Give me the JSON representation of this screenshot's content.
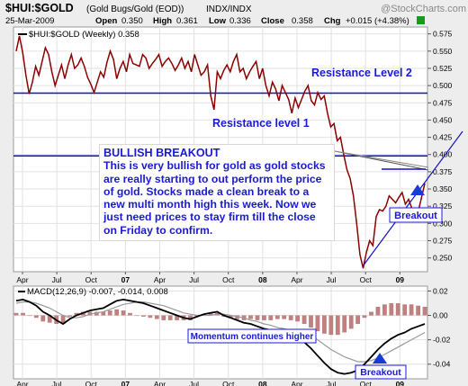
{
  "header": {
    "symbol": "$HUI:$GOLD",
    "description": "(Gold Bugs/Gold (EOD))",
    "exchange": "INDX/INDX",
    "watermark": "@StockCharts.com",
    "date": "25-Mar-2009",
    "open_label": "Open",
    "open": "0.350",
    "high_label": "High",
    "high": "0.361",
    "low_label": "Low",
    "low": "0.336",
    "close_label": "Close",
    "close": "0.358",
    "chg_label": "Chg",
    "chg": "+0.015 (+4.38%)"
  },
  "annotations": {
    "resistance_2": "Resistance Level 2",
    "resistance_1": "Resistance level 1",
    "breakout_price": "Breakout",
    "breakout_macd": "Breakout",
    "momentum": "Momentum continues higher",
    "bullish_title": "BULLISH BREAKOUT",
    "bullish_text": "This is very bullish for gold as gold stocks are really starting to out perform the price of gold. Stocks made a clean break to a new multi month high this week. Now we just need prices to stay firm till the close on Friday to confirm."
  },
  "colors": {
    "price_line": "#8b0000",
    "resistance": "#1010c8",
    "annotation": "#1a1ad6",
    "macd_line": "#000000",
    "signal_line": "#9a9a9a",
    "histogram": "#c08080",
    "plot_bg": "#ffffff",
    "page_bg": "#ededed"
  },
  "chart_data": [
    {
      "type": "line",
      "legend": "$HUI:$GOLD (Weekly) 0.358",
      "x_ticks": [
        "Apr",
        "Jul",
        "Oct",
        "07",
        "Apr",
        "Jul",
        "Oct",
        "08",
        "Apr",
        "Jul",
        "Oct",
        "09"
      ],
      "y_ticks": [
        "0.575",
        "0.550",
        "0.525",
        "0.500",
        "0.475",
        "0.450",
        "0.425",
        "0.400",
        "0.375",
        "0.350",
        "0.325",
        "0.300",
        "0.275",
        "0.250"
      ],
      "ylim": [
        0.23,
        0.585
      ],
      "resistance_levels": [
        0.489,
        0.398
      ],
      "values": [
        0.55,
        0.572,
        0.548,
        0.515,
        0.488,
        0.505,
        0.528,
        0.515,
        0.535,
        0.555,
        0.545,
        0.52,
        0.5,
        0.515,
        0.53,
        0.51,
        0.53,
        0.545,
        0.525,
        0.53,
        0.54,
        0.528,
        0.512,
        0.502,
        0.49,
        0.505,
        0.52,
        0.512,
        0.534,
        0.55,
        0.538,
        0.51,
        0.525,
        0.535,
        0.52,
        0.545,
        0.532,
        0.53,
        0.528,
        0.545,
        0.54,
        0.525,
        0.532,
        0.538,
        0.545,
        0.528,
        0.535,
        0.54,
        0.532,
        0.522,
        0.53,
        0.54,
        0.525,
        0.535,
        0.52,
        0.545,
        0.53,
        0.515,
        0.52,
        0.53,
        0.485,
        0.465,
        0.52,
        0.51,
        0.522,
        0.53,
        0.52,
        0.535,
        0.545,
        0.52,
        0.525,
        0.51,
        0.52,
        0.528,
        0.535,
        0.51,
        0.525,
        0.5,
        0.485,
        0.505,
        0.495,
        0.478,
        0.5,
        0.49,
        0.48,
        0.46,
        0.482,
        0.468,
        0.48,
        0.492,
        0.5,
        0.478,
        0.472,
        0.49,
        0.48,
        0.485,
        0.46,
        0.44,
        0.445,
        0.42,
        0.425,
        0.4,
        0.378,
        0.365,
        0.34,
        0.3,
        0.255,
        0.235,
        0.258,
        0.275,
        0.268,
        0.31,
        0.32,
        0.318,
        0.325,
        0.34,
        0.335,
        0.33,
        0.338,
        0.345,
        0.328,
        0.335,
        0.322,
        0.31,
        0.318,
        0.338,
        0.358
      ]
    },
    {
      "type": "line",
      "legend": "MACD(12,26,9) -0.007, -0.014, 0.008",
      "y_ticks": [
        "0.02",
        "0.00",
        "-0.02",
        "-0.04"
      ],
      "ylim": [
        -0.052,
        0.024
      ],
      "series": [
        {
          "values": [
            0.012,
            0.013,
            0.011,
            0.008,
            0.003,
            0.0,
            -0.004,
            -0.007,
            -0.003,
            0.0,
            0.002,
            0.004,
            0.005,
            0.006,
            0.009,
            0.012,
            0.013,
            0.012,
            0.011,
            0.01,
            0.008,
            0.006,
            0.004,
            0.002,
            0.0,
            -0.002,
            -0.003,
            -0.001,
            0.001,
            0.002,
            0.003,
            0.0,
            -0.002,
            -0.004,
            -0.006,
            -0.007,
            -0.009,
            -0.011,
            -0.012,
            -0.013,
            -0.014,
            -0.016,
            -0.018,
            -0.022,
            -0.027,
            -0.033,
            -0.039,
            -0.044,
            -0.047,
            -0.048,
            -0.047,
            -0.045,
            -0.04,
            -0.034,
            -0.028,
            -0.023,
            -0.019,
            -0.016,
            -0.014,
            -0.011,
            -0.009,
            -0.007
          ]
        },
        {
          "values": [
            0.01,
            0.011,
            0.011,
            0.01,
            0.008,
            0.006,
            0.003,
            0.0,
            -0.002,
            -0.002,
            -0.001,
            0.001,
            0.002,
            0.003,
            0.005,
            0.007,
            0.009,
            0.01,
            0.011,
            0.011,
            0.01,
            0.009,
            0.008,
            0.006,
            0.004,
            0.002,
            0.001,
            0.0,
            0.0,
            0.0,
            0.001,
            0.001,
            0.0,
            -0.001,
            -0.002,
            -0.004,
            -0.005,
            -0.007,
            -0.008,
            -0.01,
            -0.011,
            -0.012,
            -0.013,
            -0.015,
            -0.017,
            -0.02,
            -0.024,
            -0.028,
            -0.031,
            -0.034,
            -0.036,
            -0.038,
            -0.038,
            -0.037,
            -0.035,
            -0.032,
            -0.029,
            -0.026,
            -0.023,
            -0.02,
            -0.017,
            -0.014
          ]
        }
      ],
      "histogram": [
        0.002,
        0.002,
        0.0,
        -0.002,
        -0.005,
        -0.006,
        -0.007,
        -0.007,
        -0.001,
        0.002,
        0.003,
        0.003,
        0.003,
        0.003,
        0.004,
        0.005,
        0.004,
        0.002,
        0.0,
        -0.001,
        -0.002,
        -0.003,
        -0.004,
        -0.004,
        -0.004,
        -0.004,
        -0.004,
        -0.001,
        0.001,
        0.002,
        0.002,
        -0.001,
        -0.002,
        -0.003,
        -0.004,
        -0.003,
        -0.004,
        -0.004,
        -0.004,
        -0.003,
        -0.003,
        -0.004,
        -0.005,
        -0.007,
        -0.01,
        -0.013,
        -0.015,
        -0.016,
        -0.016,
        -0.014,
        -0.011,
        -0.007,
        -0.002,
        0.003,
        0.007,
        0.009,
        0.01,
        0.01,
        0.009,
        0.009,
        0.008,
        0.007
      ]
    }
  ]
}
